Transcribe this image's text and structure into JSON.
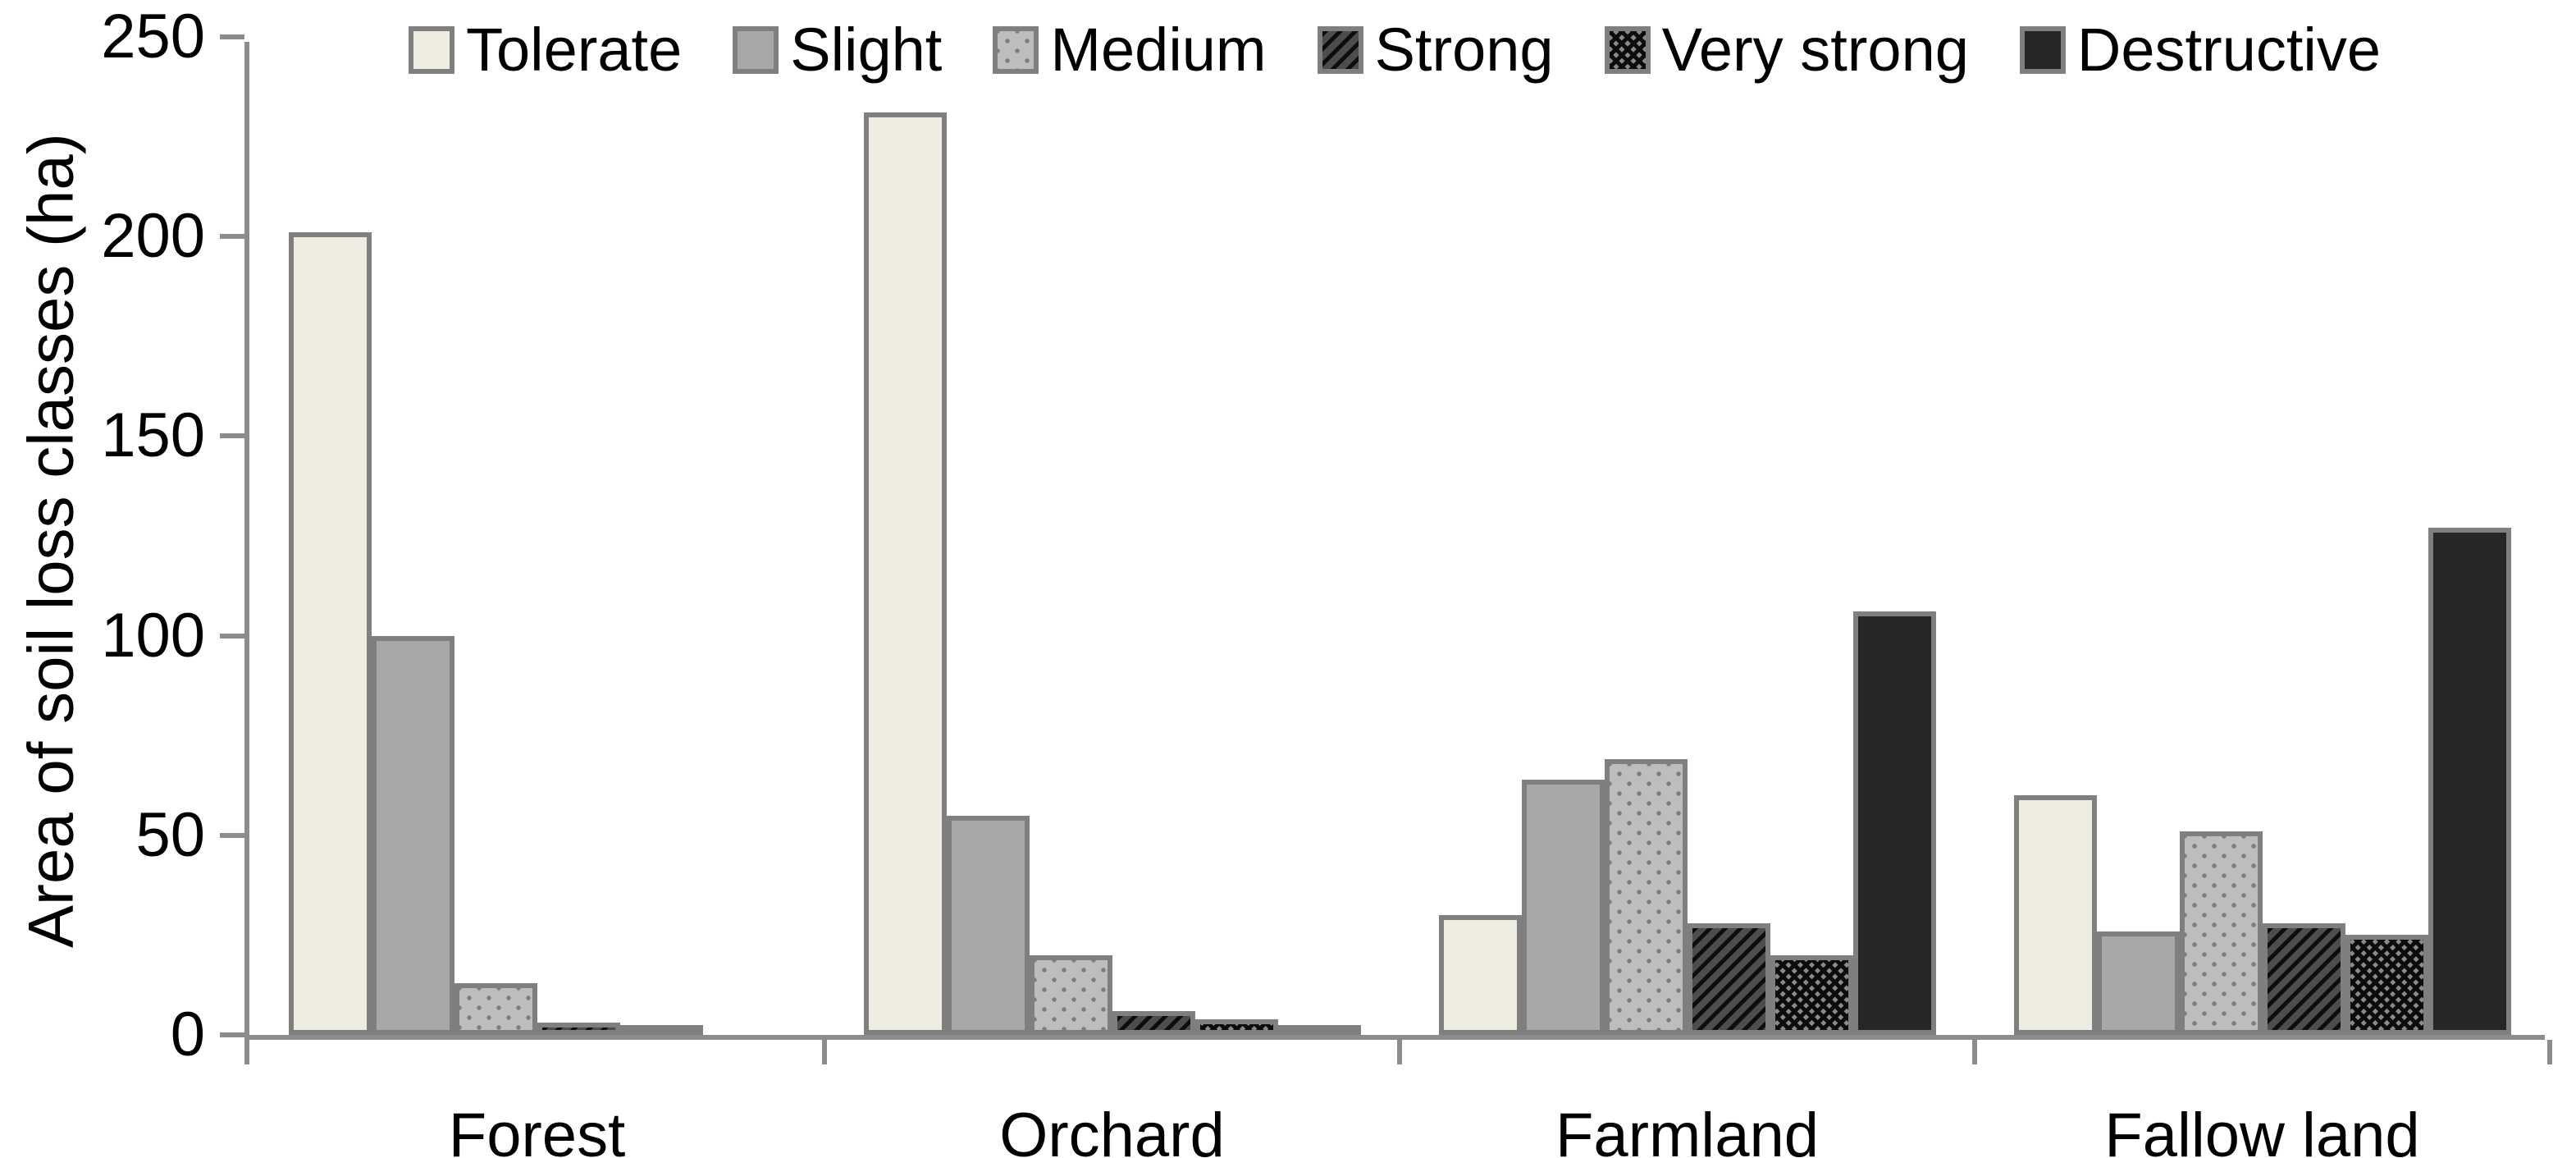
{
  "chart_data": {
    "type": "bar",
    "title": "",
    "xlabel": "",
    "ylabel": "Area of soil loss classes (ha)",
    "ylim": [
      0,
      250
    ],
    "yticks": [
      0,
      50,
      100,
      150,
      200,
      250
    ],
    "grid": false,
    "legend_position": "top",
    "categories": [
      "Forest",
      "Orchard",
      "Farmland",
      "Fallow land"
    ],
    "series": [
      {
        "name": "Tolerate",
        "pattern": "solid-cream",
        "values": [
          201,
          231,
          30,
          60
        ]
      },
      {
        "name": "Slight",
        "pattern": "solid-gray",
        "values": [
          100,
          55,
          64,
          26
        ]
      },
      {
        "name": "Medium",
        "pattern": "dots",
        "values": [
          13,
          20,
          69,
          51
        ]
      },
      {
        "name": "Strong",
        "pattern": "diagonal-hatch",
        "values": [
          3,
          6,
          28,
          28
        ]
      },
      {
        "name": "Very strong",
        "pattern": "crosshatch",
        "values": [
          1.5,
          4,
          20,
          25
        ]
      },
      {
        "name": "Destructive",
        "pattern": "solid-black",
        "values": [
          0,
          2,
          106,
          127
        ]
      }
    ],
    "colors": {
      "tolerate_fill": "#EFEDE1",
      "slight_fill": "#A8A8A8",
      "medium_fill": "#BDBDBD",
      "medium_dot": "#7C7C7C",
      "strong_dark": "#0D0D0D",
      "strong_light": "#4D4D4D",
      "very_strong_dark": "#0C0C0C",
      "very_strong_light": "#8A8A8A",
      "destructive_fill": "#262626",
      "bar_border": "#7F7F7F",
      "axis": "#8C8C8C",
      "text": "#000000"
    }
  }
}
